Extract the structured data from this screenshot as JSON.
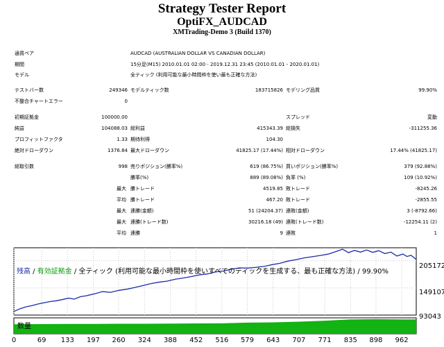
{
  "report": {
    "title": "Strategy Tester Report",
    "symbol": "OptiFX_AUDCAD",
    "server": "XMTrading-Demo 3 (Build 1370)"
  },
  "info": {
    "pair_label": "通貨ペア",
    "pair_value": "AUDCAD (AUSTRALIAN DOLLAR VS CANADIAN DOLLAR)",
    "period_label": "期間",
    "period_value": "15分足(M15) 2010.01.01 02:00 - 2019.12.31 23:45 (2010.01.01 - 2020.01.01)",
    "model_label": "モデル",
    "model_value": "全ティック (利用可能な最小時間枠を使い最も正確な方法)"
  },
  "stats": {
    "bars_label": "テストバー数",
    "bars_value": "249346",
    "model_ticks_label": "モデルティック数",
    "model_ticks_value": "183715826",
    "model_quality_label": "モデリング品質",
    "model_quality_value": "99.90%",
    "mismatch_label": "不整合チャートエラー",
    "mismatch_value": "0",
    "deposit_label": "初期証拠金",
    "deposit_value": "100000.00",
    "spread_label": "スプレッド",
    "spread_value": "変動",
    "net_profit_label": "純益",
    "net_profit_value": "104088.03",
    "gross_profit_label": "総利益",
    "gross_profit_value": "415343.39",
    "gross_loss_label": "総損失",
    "gross_loss_value": "-311255.36",
    "profit_factor_label": "プロフィットファクタ",
    "profit_factor_value": "1.33",
    "expected_label": "期待利得",
    "expected_value": "104.30",
    "abs_dd_label": "絶対ドローダウン",
    "abs_dd_value": "1376.84",
    "max_dd_label": "最大ドローダウン",
    "max_dd_value": "41825.17 (17.44%)",
    "rel_dd_label": "相対ドローダウン",
    "rel_dd_value": "17.44% (41825.17)",
    "total_trades_label": "総取引数",
    "total_trades_value": "998",
    "short_label": "売りポジション(勝率%)",
    "short_value": "619 (86.75%)",
    "long_label": "買いポジション(勝率%)",
    "long_value": "379 (92.88%)",
    "win_rate_label": "勝率(%)",
    "win_rate_value": "889 (89.08%)",
    "loss_rate_label": "負率 (%)",
    "loss_rate_value": "109 (10.92%)",
    "largest_label": "最大",
    "average_label": "平均",
    "largest_win_label": "勝トレード",
    "largest_win_value": "4519.85",
    "largest_loss_label": "敗トレード",
    "largest_loss_value": "-8245.26",
    "avg_win_label": "勝トレード",
    "avg_win_value": "467.20",
    "avg_loss_label": "敗トレード",
    "avg_loss_value": "-2855.55",
    "max_cons_wins_label": "連勝(金額)",
    "max_cons_wins_value": "51 (24204.37)",
    "max_cons_losses_label": "連敗(金額)",
    "max_cons_losses_value": "3 (-8792.66)",
    "max_cons_profit_label": "連勝(トレード数)",
    "max_cons_profit_value": "30216.18 (49)",
    "max_cons_loss_label": "連敗(トレード数)",
    "max_cons_loss_value": "-12254.11 (2)",
    "avg_cons_wins_label": "連勝",
    "avg_cons_wins_value": "9",
    "avg_cons_losses_label": "連敗",
    "avg_cons_losses_value": "1"
  },
  "chart_data": {
    "type": "line",
    "caption_balance": "残高",
    "caption_sep1": " / ",
    "caption_equity": "有効証拠金",
    "caption_rest": " / 全ティック (利用可能な最小時間枠を使いすべてのティックを生成する、最も正確な方法) / 99.90%",
    "y_labels": [
      "205172",
      "149107",
      "93043"
    ],
    "volume_label": "数量",
    "x_ticks": [
      "0",
      "69",
      "133",
      "197",
      "260",
      "324",
      "388",
      "452",
      "516",
      "579",
      "643",
      "707",
      "771",
      "835",
      "898",
      "962"
    ],
    "x_range": [
      0,
      998
    ],
    "y_range": [
      93043,
      232000
    ],
    "colors": {
      "balance": "#1c2aa8",
      "equity": "#0a9a0a",
      "volume": "#12b312",
      "grid": "#c8c8c8"
    },
    "series": [
      {
        "name": "残高",
        "x": [
          0,
          15,
          30,
          45,
          60,
          75,
          90,
          105,
          120,
          135,
          150,
          165,
          180,
          200,
          220,
          240,
          260,
          280,
          300,
          320,
          340,
          360,
          380,
          400,
          420,
          440,
          460,
          480,
          500,
          520,
          540,
          560,
          580,
          600,
          620,
          640,
          660,
          680,
          700,
          720,
          740,
          760,
          780,
          800,
          815,
          830,
          845,
          860,
          875,
          890,
          905,
          920,
          935,
          950,
          965,
          975,
          985,
          998
        ],
        "y": [
          100500,
          106000,
          110000,
          112500,
          116000,
          118500,
          121000,
          122500,
          125000,
          128000,
          126000,
          131000,
          133000,
          137000,
          141500,
          140000,
          144000,
          146500,
          150000,
          154000,
          158000,
          161000,
          163000,
          167000,
          169500,
          172500,
          176000,
          178000,
          182000,
          184000,
          188000,
          190500,
          190000,
          191500,
          193500,
          197000,
          200000,
          204500,
          207500,
          211000,
          213500,
          216000,
          219000,
          224500,
          229000,
          222000,
          226500,
          223000,
          227500,
          222500,
          226000,
          220000,
          223000,
          215000,
          219000,
          214000,
          216500,
          207800
        ]
      }
    ],
    "volume": {
      "x": [
        0,
        69,
        133,
        197,
        260,
        324,
        388,
        452,
        516,
        579,
        643,
        707,
        771,
        835,
        898,
        962,
        998
      ],
      "level": [
        0.6,
        0.61,
        0.62,
        0.62,
        0.63,
        0.63,
        0.64,
        0.65,
        0.66,
        0.7,
        0.72,
        0.76,
        0.82,
        0.9,
        0.92,
        0.9,
        0.9
      ]
    }
  }
}
